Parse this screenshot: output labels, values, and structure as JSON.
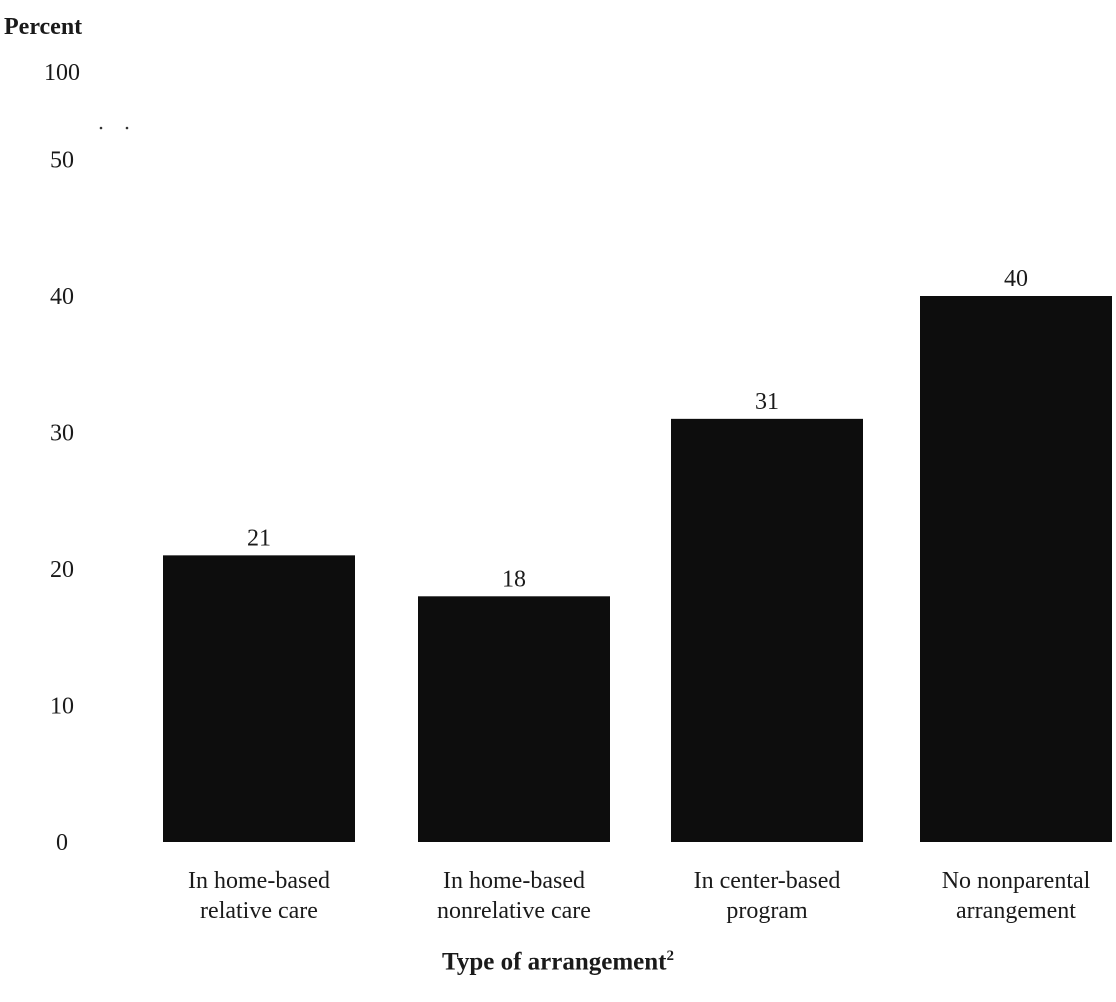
{
  "chart_data": {
    "type": "bar",
    "ylabel": "Percent",
    "xlabel": "Type of arrangement",
    "xlabel_superscript": "2",
    "categories": [
      [
        "In home-based",
        "relative care"
      ],
      [
        "In home-based",
        "nonrelative care"
      ],
      [
        "In center-based",
        "program"
      ],
      [
        "No nonparental",
        "arrangement"
      ]
    ],
    "values": [
      21,
      18,
      31,
      40
    ],
    "data_labels": [
      "21",
      "18",
      "31",
      "40"
    ],
    "y_ticks": [
      {
        "value": 0,
        "label": "0"
      },
      {
        "value": 10,
        "label": "10"
      },
      {
        "value": 20,
        "label": "20"
      },
      {
        "value": 30,
        "label": "30"
      },
      {
        "value": 40,
        "label": "40"
      },
      {
        "value": 50,
        "label": "50"
      },
      {
        "value": 100,
        "label": "100"
      }
    ],
    "axis_break": true,
    "ylim": [
      0,
      100
    ],
    "grid": false,
    "legend": "none",
    "bar_color": "#0d0d0d"
  }
}
